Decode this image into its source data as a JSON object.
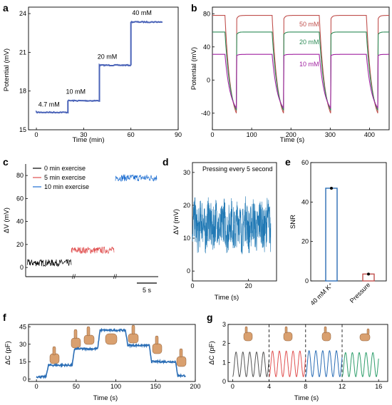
{
  "chart_data": [
    {
      "panel": "a",
      "type": "line",
      "xlabel": "Time (min)",
      "ylabel": "Potential (mV)",
      "xlim": [
        -5,
        90
      ],
      "ylim": [
        15,
        24.5
      ],
      "xticks": [
        "0",
        "30",
        "60",
        "90"
      ],
      "xtick_values": [
        0,
        30,
        60,
        90
      ],
      "yticks": [
        "15",
        "18",
        "21",
        "24"
      ],
      "ytick_values": [
        15,
        18,
        21,
        24
      ],
      "step_labels": [
        "4.7 mM",
        "10 mM",
        "20 mM",
        "40 mM"
      ],
      "label_x": [
        8,
        25,
        45,
        67
      ],
      "label_y": [
        16.8,
        17.8,
        20.5,
        23.9
      ],
      "series": [
        {
          "x": [
            0,
            20,
            20,
            40,
            40,
            60,
            60,
            80
          ],
          "y": [
            16.35,
            16.35,
            17.25,
            17.25,
            20.0,
            20.0,
            23.35,
            23.35
          ]
        }
      ],
      "color": "#4a63b8"
    },
    {
      "panel": "b",
      "type": "line",
      "xlabel": "Time (s)",
      "ylabel": "Potential (mV)",
      "xlim": [
        0,
        450
      ],
      "ylim": [
        -60,
        88
      ],
      "xticks": [
        "0",
        "100",
        "200",
        "300",
        "400"
      ],
      "xtick_values": [
        0,
        100,
        200,
        300,
        400
      ],
      "yticks": [
        "-40",
        "0",
        "40",
        "80"
      ],
      "ytick_values": [
        -40,
        0,
        40,
        80
      ],
      "period_s": 120,
      "on_duration_s": 90,
      "first_on_s": -58,
      "series": [
        {
          "label": "50 mM",
          "high": 78,
          "low": -57,
          "color": "#c0504d"
        },
        {
          "label": "20 mM",
          "high": 58,
          "low": -50,
          "color": "#2e8b57"
        },
        {
          "label": "10 mM",
          "high": 31,
          "low": -43,
          "color": "#a020a0"
        }
      ]
    },
    {
      "panel": "c",
      "type": "line",
      "xlabel": "",
      "ylabel": "ΔV (mV)",
      "ylim": [
        -8,
        90
      ],
      "yticks": [
        "0",
        "20",
        "40",
        "60",
        "80"
      ],
      "ytick_values": [
        0,
        20,
        40,
        60,
        80
      ],
      "scale_bar_label": "5 s",
      "break_marks": [
        "//",
        "//"
      ],
      "series": [
        {
          "label": "0 min exercise",
          "level": 4,
          "noise": 3,
          "color": "#000000"
        },
        {
          "label": "5 min exercise",
          "level": 15,
          "noise": 3,
          "color": "#e05050"
        },
        {
          "label": "10 min exercise",
          "level": 78,
          "noise": 3,
          "color": "#1f6fd1"
        }
      ]
    },
    {
      "panel": "d",
      "type": "line",
      "xlabel": "Time (s)",
      "ylabel": "ΔV (mV)",
      "title": "Pressing every 5 second",
      "xlim": [
        0,
        30
      ],
      "ylim": [
        -3,
        33
      ],
      "xticks": [
        "0",
        "20"
      ],
      "xtick_values": [
        0,
        20
      ],
      "yticks": [
        "0",
        "10",
        "20",
        "30"
      ],
      "ytick_values": [
        0,
        10,
        20,
        30
      ],
      "mean": 14,
      "amplitude": 7,
      "color": "#1f78b4"
    },
    {
      "panel": "e",
      "type": "bar",
      "xlabel": "",
      "ylabel": "SNR",
      "ylim": [
        0,
        60
      ],
      "yticks": [
        "0",
        "20",
        "40",
        "60"
      ],
      "ytick_values": [
        0,
        20,
        40,
        60
      ],
      "categories": [
        "40 mM K⁺",
        "Pressure"
      ],
      "values": [
        47,
        3.5
      ],
      "errors": [
        0.7,
        0.5
      ],
      "colors": [
        "#2a6db5",
        "#c0504d"
      ]
    },
    {
      "panel": "f",
      "type": "line",
      "xlabel": "Time (s)",
      "ylabel": "ΔC (pF)",
      "xlim": [
        -10,
        200
      ],
      "ylim": [
        -2,
        47
      ],
      "xticks": [
        "0",
        "50",
        "100",
        "150",
        "200"
      ],
      "xtick_values": [
        0,
        50,
        100,
        150,
        200
      ],
      "yticks": [
        "0",
        "15",
        "30",
        "45"
      ],
      "ytick_values": [
        0,
        15,
        30,
        45
      ],
      "segments": [
        [
          0,
          2
        ],
        [
          15,
          12
        ],
        [
          48,
          26
        ],
        [
          80,
          42
        ],
        [
          115,
          29
        ],
        [
          145,
          15
        ],
        [
          178,
          3
        ],
        [
          188,
          3
        ]
      ],
      "color": "#2a6db5"
    },
    {
      "panel": "g",
      "type": "line",
      "xlabel": "Time (s)",
      "ylabel": "ΔC (pF)",
      "xlim": [
        -0.5,
        17
      ],
      "ylim": [
        0,
        3
      ],
      "xticks": [
        "0",
        "4",
        "8",
        "12",
        "16"
      ],
      "xtick_values": [
        0,
        4,
        8,
        12,
        16
      ],
      "yticks": [
        "0",
        "1",
        "2",
        "3"
      ],
      "ytick_values": [
        0,
        1,
        2,
        3
      ],
      "dividers": [
        4,
        8,
        12
      ],
      "series": [
        {
          "x_range": [
            0,
            4
          ],
          "peak": 1.55,
          "color": "#555555"
        },
        {
          "x_range": [
            4,
            8
          ],
          "peak": 1.6,
          "color": "#e05050"
        },
        {
          "x_range": [
            8,
            12
          ],
          "peak": 1.62,
          "color": "#2a6db5"
        },
        {
          "x_range": [
            12,
            16
          ],
          "peak": 1.52,
          "color": "#2e9e6b"
        }
      ]
    }
  ],
  "panel_labels": [
    "a",
    "b",
    "c",
    "d",
    "e",
    "f",
    "g"
  ]
}
